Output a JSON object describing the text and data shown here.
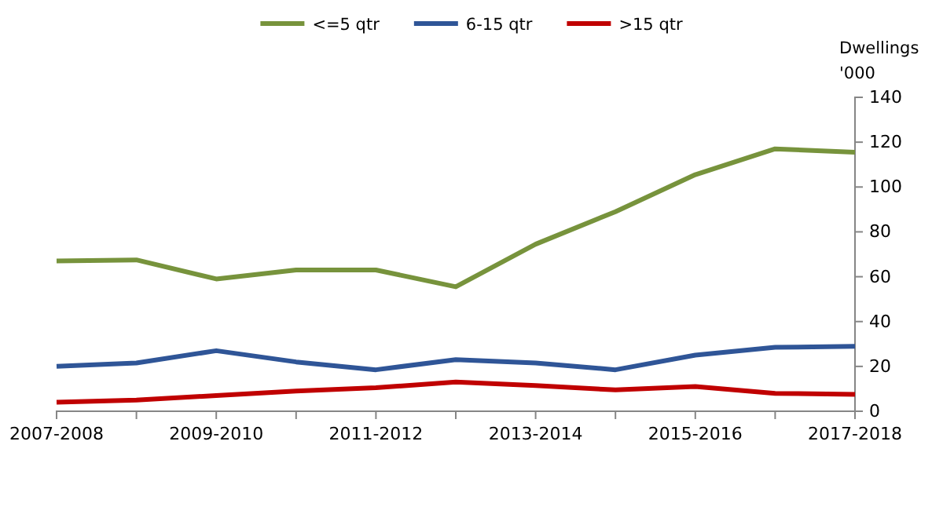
{
  "chart_data": {
    "type": "line",
    "ylabel": "Dwellings '000",
    "categories": [
      "2007-2008",
      null,
      "2009-2010",
      null,
      "2011-2012",
      null,
      "2013-2014",
      null,
      "2015-2016",
      null,
      "2017-2018"
    ],
    "series": [
      {
        "name": "<=5 qtr",
        "color": "#77933c",
        "values": [
          67,
          67.5,
          59,
          63,
          63,
          55.5,
          74.5,
          89,
          105.5,
          117,
          115.5
        ]
      },
      {
        "name": "6-15 qtr",
        "color": "#2f5597",
        "values": [
          20,
          21.5,
          27,
          22,
          18.5,
          23,
          21.5,
          18.5,
          25,
          28.5,
          29
        ]
      },
      {
        "name": ">15 qtr",
        "color": "#c00000",
        "values": [
          4,
          5,
          7,
          9,
          10.5,
          13,
          11.5,
          9.5,
          11,
          8,
          7.5
        ]
      }
    ],
    "ylim": [
      0,
      140
    ],
    "yticks": [
      0,
      20,
      40,
      60,
      80,
      100,
      120,
      140
    ],
    "grid": false,
    "legend": "top",
    "marker": "none",
    "line_style": "solid"
  }
}
